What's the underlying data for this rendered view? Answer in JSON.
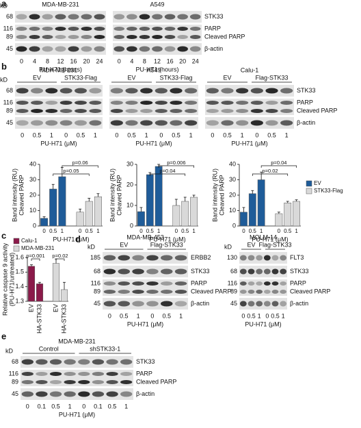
{
  "panel_labels": [
    "a",
    "b",
    "c",
    "d",
    "e"
  ],
  "unit": "kD",
  "blots": [
    {
      "title": "MDA-MB-231",
      "lanes": [
        0,
        4,
        8,
        12,
        16,
        20,
        24
      ],
      "xlabel": "PU-H71 (hours)",
      "rows": [
        {
          "markers": [
            68
          ]
        },
        {
          "markers": [
            116,
            89
          ]
        },
        {
          "markers": [
            45
          ]
        }
      ]
    },
    {
      "title": "A549",
      "lanes": [
        0,
        4,
        8,
        12,
        16,
        20,
        24
      ],
      "xlabel": "PU-H71 (hours)",
      "rows": [
        {
          "labels": [
            "STK33"
          ]
        },
        {
          "labels": [
            "PARP",
            "Cleaved PARP"
          ]
        },
        {
          "labels": [
            "β-actin"
          ]
        }
      ]
    },
    {
      "title": "MDA-MB-231",
      "groups": [
        "EV",
        "STK33-Flag"
      ],
      "lanes": [
        0,
        0.5,
        1,
        0,
        0.5,
        1
      ],
      "xlabel": "PU-H71 (μM)",
      "rows": [
        {
          "markers": [
            68
          ]
        },
        {
          "markers": [
            116,
            89
          ]
        },
        {
          "markers": [
            45
          ]
        }
      ]
    },
    {
      "title": "A549",
      "groups": [
        "EV",
        "STK33-Flag"
      ],
      "lanes": [
        0,
        0.5,
        1,
        0,
        0.5,
        1
      ],
      "xlabel": "PU-H71 (μM)",
      "rows": [
        {
          "bands": 1
        },
        {
          "bands": 2
        },
        {
          "bands": 1
        }
      ]
    },
    {
      "title": "Calu-1",
      "groups": [
        "EV",
        "Flag-STK33"
      ],
      "lanes": [
        0,
        0.5,
        1,
        0,
        0.5,
        1
      ],
      "xlabel": "PU-H71 (μM)",
      "rows": [
        {
          "labels": [
            "STK33"
          ]
        },
        {
          "labels": [
            "PARP",
            "Cleaved PARP"
          ]
        },
        {
          "labels": [
            "β-actin"
          ]
        }
      ]
    },
    {
      "title": "MDA-MB-453",
      "groups": [
        "EV",
        "Flag-STK33"
      ],
      "lanes": [
        0,
        0.5,
        1,
        0,
        0.5,
        1
      ],
      "xlabel": "PU-H71 (μM)",
      "rows": [
        {
          "markers": [
            185
          ],
          "labels": [
            "ERBB2"
          ]
        },
        {
          "markers": [
            68
          ],
          "labels": [
            "STK33"
          ]
        },
        {
          "markers": [
            116,
            89
          ],
          "labels": [
            "PARP",
            "Cleaved PARP"
          ]
        },
        {
          "markers": [
            45
          ],
          "labels": [
            "β-actin"
          ]
        }
      ]
    },
    {
      "title": "MOLM-14",
      "groups": [
        "EV",
        "Flag-STK33"
      ],
      "lanes": [
        0,
        0.5,
        1,
        0,
        0.5,
        1
      ],
      "xlabel": "PU-H71 (μM)",
      "rows": [
        {
          "markers": [
            130
          ],
          "labels": [
            "FLT3"
          ]
        },
        {
          "markers": [
            68
          ],
          "labels": [
            "STK33"
          ]
        },
        {
          "markers": [
            116,
            89
          ],
          "labels": [
            "PARP",
            "Cleaved PARP"
          ]
        },
        {
          "markers": [
            45
          ],
          "labels": [
            "β-actin"
          ]
        }
      ]
    },
    {
      "title": "MDA-MB-231",
      "groups": [
        "Control",
        "shSTK33-1"
      ],
      "lanes": [
        0,
        0.1,
        0.5,
        1,
        0,
        0.1,
        0.5,
        1
      ],
      "xlabel": "PU-H71 (μM)",
      "rows": [
        {
          "markers": [
            68
          ],
          "labels": [
            "STK33"
          ]
        },
        {
          "markers": [
            116,
            89
          ],
          "labels": [
            "PARP",
            "Cleaved PARP"
          ]
        },
        {
          "markers": [
            45
          ],
          "labels": [
            "β-actin"
          ]
        }
      ]
    }
  ],
  "charts": [
    {
      "type": "bar",
      "ylabel": [
        "Band intensity (RU)",
        "Cleaved PARP"
      ],
      "xlabel": "PU-H71 (μM)",
      "categories": [
        0,
        0.5,
        1
      ],
      "ylim": [
        0,
        40
      ],
      "yticks": [
        0,
        10,
        20,
        30,
        40
      ],
      "series": [
        {
          "name": "EV",
          "color": "#1f5c99",
          "values": [
            5,
            24,
            32
          ],
          "errors": [
            1,
            3,
            6
          ]
        },
        {
          "name": "STK33-Flag",
          "color": "#d9d9d9",
          "values": [
            9,
            16,
            19
          ],
          "errors": [
            2,
            2,
            2
          ]
        }
      ],
      "annotations": [
        "p=0.06",
        "p=0.05"
      ],
      "legend": false
    },
    {
      "type": "bar",
      "ylabel": [
        "Band intensity (RU)",
        "Cleaved PARP"
      ],
      "xlabel": "PU-H71 (μM)",
      "categories": [
        0,
        0.5,
        1
      ],
      "ylim": [
        0,
        30
      ],
      "yticks": [
        0,
        10,
        20,
        30
      ],
      "series": [
        {
          "name": "EV",
          "color": "#1f5c99",
          "values": [
            7,
            25,
            29
          ],
          "errors": [
            2,
            1,
            1
          ]
        },
        {
          "name": "STK33-Flag",
          "color": "#d9d9d9",
          "values": [
            10,
            12,
            14
          ],
          "errors": [
            3,
            2,
            1
          ]
        }
      ],
      "annotations": [
        "p=0.006",
        "p=0.04"
      ],
      "legend": false
    },
    {
      "type": "bar",
      "ylabel": [
        "Band intensity (RU)",
        "Cleaved PARP"
      ],
      "xlabel": "PU-H71 (μM)",
      "categories": [
        0,
        0.5,
        1
      ],
      "ylim": [
        0,
        40
      ],
      "yticks": [
        0,
        10,
        20,
        30,
        40
      ],
      "series": [
        {
          "name": "EV",
          "color": "#1f5c99",
          "values": [
            9,
            21,
            30
          ],
          "errors": [
            3,
            2,
            5
          ]
        },
        {
          "name": "STK33-Flag",
          "color": "#d9d9d9",
          "values": [
            8,
            15,
            16
          ],
          "errors": [
            1,
            1,
            1
          ]
        }
      ],
      "annotations": [
        "p=0.04",
        "p=0.02"
      ],
      "legend": true
    },
    {
      "type": "bar",
      "ylabel": [
        "Relative caspase 9 activity",
        "(PU-H71/untreated)"
      ],
      "categories": [
        "EV",
        "HA-STK33"
      ],
      "ylim": [
        1.3,
        1.6
      ],
      "yticks": [
        1.3,
        1.4,
        1.5,
        1.6
      ],
      "series": [
        {
          "name": "Calu-1",
          "color": "#8b1a4a",
          "values": [
            1.54,
            1.42
          ],
          "errors": [
            0.01,
            0.01
          ]
        },
        {
          "name": "MDA-MB-231",
          "color": "#d9d9d9",
          "values": [
            1.56,
            1.38
          ],
          "errors": [
            0.03,
            0.05
          ]
        }
      ],
      "annotations": [
        "p=0.001",
        "p=0.02"
      ],
      "legend": true
    }
  ]
}
